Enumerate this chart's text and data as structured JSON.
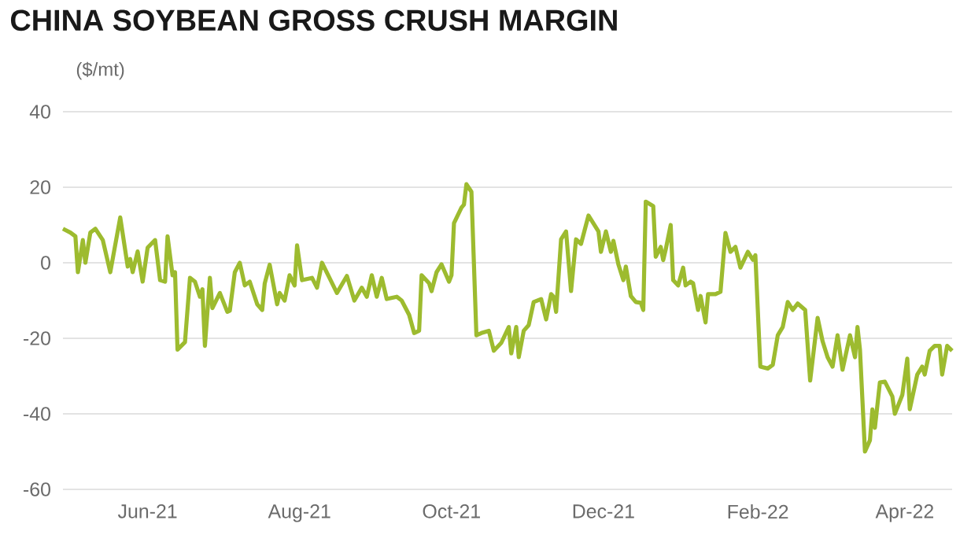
{
  "chart_data": {
    "type": "line",
    "title": "CHINA SOYBEAN GROSS CRUSH MARGIN",
    "ylabel": "($/mt)",
    "x": [
      "2021-04-28",
      "2021-05-01",
      "2021-05-03",
      "2021-05-04",
      "2021-05-06",
      "2021-05-07",
      "2021-05-09",
      "2021-05-11",
      "2021-05-14",
      "2021-05-17",
      "2021-05-21",
      "2021-05-24",
      "2021-05-25",
      "2021-05-26",
      "2021-05-28",
      "2021-05-30",
      "2021-06-01",
      "2021-06-04",
      "2021-06-06",
      "2021-06-08",
      "2021-06-09",
      "2021-06-11",
      "2021-06-12",
      "2021-06-13",
      "2021-06-16",
      "2021-06-18",
      "2021-06-20",
      "2021-06-22",
      "2021-06-23",
      "2021-06-24",
      "2021-06-26",
      "2021-06-27",
      "2021-06-30",
      "2021-07-03",
      "2021-07-04",
      "2021-07-06",
      "2021-07-08",
      "2021-07-10",
      "2021-07-12",
      "2021-07-15",
      "2021-07-17",
      "2021-07-18",
      "2021-07-20",
      "2021-07-23",
      "2021-07-24",
      "2021-07-26",
      "2021-07-28",
      "2021-07-30",
      "2021-07-31",
      "2021-08-02",
      "2021-08-06",
      "2021-08-08",
      "2021-08-10",
      "2021-08-13",
      "2021-08-16",
      "2021-08-20",
      "2021-08-23",
      "2021-08-26",
      "2021-08-28",
      "2021-08-30",
      "2021-09-01",
      "2021-09-03",
      "2021-09-05",
      "2021-09-09",
      "2021-09-11",
      "2021-09-14",
      "2021-09-16",
      "2021-09-18",
      "2021-09-19",
      "2021-09-22",
      "2021-09-23",
      "2021-09-25",
      "2021-09-27",
      "2021-09-30",
      "2021-10-01",
      "2021-10-02",
      "2021-10-05",
      "2021-10-06",
      "2021-10-07",
      "2021-10-09",
      "2021-10-11",
      "2021-10-13",
      "2021-10-16",
      "2021-10-18",
      "2021-10-21",
      "2021-10-24",
      "2021-10-25",
      "2021-10-27",
      "2021-10-28",
      "2021-10-30",
      "2021-11-01",
      "2021-11-03",
      "2021-11-06",
      "2021-11-08",
      "2021-11-10",
      "2021-11-11",
      "2021-11-12",
      "2021-11-14",
      "2021-11-16",
      "2021-11-18",
      "2021-11-20",
      "2021-11-22",
      "2021-11-25",
      "2021-11-29",
      "2021-11-30",
      "2021-12-02",
      "2021-12-04",
      "2021-12-05",
      "2021-12-07",
      "2021-12-09",
      "2021-12-10",
      "2021-12-12",
      "2021-12-14",
      "2021-12-16",
      "2021-12-17",
      "2021-12-18",
      "2021-12-21",
      "2021-12-22",
      "2021-12-24",
      "2021-12-25",
      "2021-12-26",
      "2021-12-28",
      "2021-12-29",
      "2021-12-31",
      "2022-01-02",
      "2022-01-03",
      "2022-01-05",
      "2022-01-06",
      "2022-01-08",
      "2022-01-09",
      "2022-01-11",
      "2022-01-12",
      "2022-01-15",
      "2022-01-17",
      "2022-01-19",
      "2022-01-21",
      "2022-01-23",
      "2022-01-25",
      "2022-01-28",
      "2022-01-30",
      "2022-01-31",
      "2022-02-02",
      "2022-02-05",
      "2022-02-07",
      "2022-02-09",
      "2022-02-11",
      "2022-02-13",
      "2022-02-15",
      "2022-02-17",
      "2022-02-20",
      "2022-02-22",
      "2022-02-25",
      "2022-02-27",
      "2022-03-01",
      "2022-03-03",
      "2022-03-05",
      "2022-03-07",
      "2022-03-10",
      "2022-03-12",
      "2022-03-13",
      "2022-03-14",
      "2022-03-16",
      "2022-03-18",
      "2022-03-19",
      "2022-03-20",
      "2022-03-22",
      "2022-03-24",
      "2022-03-27",
      "2022-03-28",
      "2022-03-31",
      "2022-04-02",
      "2022-04-03",
      "2022-04-06",
      "2022-04-08",
      "2022-04-09",
      "2022-04-11",
      "2022-04-13",
      "2022-04-15",
      "2022-04-16",
      "2022-04-18",
      "2022-04-20"
    ],
    "series": [
      {
        "color": "#9dbb2f",
        "values": [
          9,
          8,
          7,
          -2.5,
          6,
          0,
          8,
          9,
          6,
          -2.5,
          12,
          -1,
          1,
          -2.5,
          3,
          -5,
          4,
          6,
          -4.6,
          -5,
          7,
          -3.3,
          -2.5,
          -23,
          -21,
          -4,
          -5,
          -9,
          -7,
          -22,
          -4,
          -12,
          -8,
          -13,
          -12.7,
          -2.5,
          0,
          -6,
          -5,
          -11,
          -12.5,
          -5.5,
          -0.5,
          -11,
          -8,
          -10,
          -3.3,
          -6,
          4.6,
          -4.6,
          -4,
          -6.6,
          0,
          -4,
          -8,
          -3.5,
          -10,
          -6.6,
          -9,
          -3.3,
          -9,
          -4,
          -9.6,
          -9,
          -10,
          -13.8,
          -18.6,
          -18,
          -3.3,
          -5.4,
          -7.5,
          -2.5,
          -0.4,
          -5,
          -3.3,
          10.5,
          14.6,
          15.4,
          20.8,
          18.8,
          -19.2,
          -18.6,
          -18,
          -23.3,
          -21.2,
          -17,
          -24,
          -17,
          -25,
          -18,
          -16.5,
          -10.4,
          -9.6,
          -15,
          -8.3,
          -9,
          -13,
          6.2,
          8.3,
          -7.5,
          6.2,
          5,
          12.5,
          8.3,
          2.9,
          8.3,
          2.9,
          5.8,
          -0.4,
          -4.6,
          -1,
          -8.8,
          -10.4,
          -10.6,
          -12.5,
          16.2,
          15,
          1.6,
          4.2,
          0.7,
          3.5,
          10,
          -4.6,
          -6,
          -1.3,
          -6,
          -5,
          -5.4,
          -12.5,
          -8.8,
          -15.8,
          -8.3,
          -8.3,
          -7.7,
          7.9,
          2.9,
          4.2,
          -1.3,
          2.9,
          0.8,
          2,
          -27.5,
          -28,
          -27,
          -19.2,
          -17,
          -10.4,
          -12.5,
          -10.8,
          -12.5,
          -31.2,
          -14.6,
          -20.8,
          -25,
          -27.5,
          -19.2,
          -28.3,
          -19.2,
          -25,
          -17,
          -23,
          -50,
          -47,
          -38.8,
          -43.7,
          -31.7,
          -31.5,
          -35.4,
          -40,
          -35,
          -25.4,
          -38.8,
          -29.6,
          -27.5,
          -29.6,
          -23.3,
          -22,
          -22,
          -29.6,
          -22,
          -23.3
        ]
      }
    ],
    "xlim": [
      "2021-04-28",
      "2022-04-20"
    ],
    "xticks": [
      {
        "value": "2021-06-01",
        "label": "Jun-21"
      },
      {
        "value": "2021-08-01",
        "label": "Aug-21"
      },
      {
        "value": "2021-10-01",
        "label": "Oct-21"
      },
      {
        "value": "2021-12-01",
        "label": "Dec-21"
      },
      {
        "value": "2022-02-01",
        "label": "Feb-22"
      },
      {
        "value": "2022-04-01",
        "label": "Apr-22"
      }
    ],
    "ylim": [
      -60,
      40
    ],
    "yticks": [
      -60,
      -40,
      -20,
      0,
      20,
      40
    ],
    "grid": "y"
  }
}
